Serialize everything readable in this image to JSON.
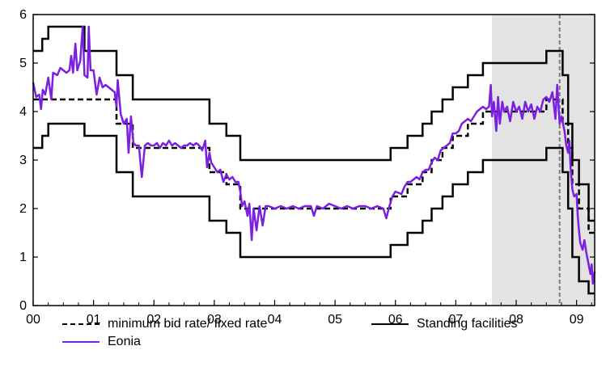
{
  "chart_data": {
    "type": "line",
    "title": "",
    "xlabel": "",
    "ylabel": "",
    "x_ticks": [
      "00",
      "01",
      "02",
      "03",
      "04",
      "05",
      "06",
      "07",
      "08",
      "09"
    ],
    "y_ticks": [
      "0",
      "1",
      "2",
      "3",
      "4",
      "5",
      "6"
    ],
    "xlim": [
      2000.0,
      2009.3
    ],
    "ylim": [
      0,
      6
    ],
    "shaded_region": {
      "from": 2007.6,
      "to": 2009.3,
      "color": "#e3e3e3"
    },
    "vertical_marker": {
      "x": 2008.72,
      "style": "dashed",
      "color": "#7a7a7a"
    },
    "legend_position": "bottom",
    "series": [
      {
        "name": "minimum bid rate/ fixed rate",
        "style": "dashed",
        "color": "#000000",
        "steps": [
          [
            2000.0,
            4.25
          ],
          [
            2001.38,
            3.75
          ],
          [
            2001.65,
            3.25
          ],
          [
            2002.92,
            2.75
          ],
          [
            2003.2,
            2.5
          ],
          [
            2003.43,
            2.0
          ],
          [
            2005.92,
            2.25
          ],
          [
            2006.2,
            2.5
          ],
          [
            2006.45,
            2.75
          ],
          [
            2006.6,
            3.0
          ],
          [
            2006.78,
            3.25
          ],
          [
            2006.95,
            3.5
          ],
          [
            2007.2,
            3.75
          ],
          [
            2007.45,
            4.0
          ],
          [
            2008.5,
            4.25
          ],
          [
            2008.77,
            3.75
          ],
          [
            2008.86,
            3.25
          ],
          [
            2008.93,
            2.5
          ],
          [
            2009.04,
            2.0
          ],
          [
            2009.2,
            1.5
          ],
          [
            2009.3,
            1.5
          ]
        ]
      },
      {
        "name": "Standing facilities",
        "style": "solid",
        "color": "#000000",
        "upper_steps": [
          [
            2000.0,
            5.25
          ],
          [
            2000.15,
            5.5
          ],
          [
            2000.25,
            5.75
          ],
          [
            2000.85,
            5.25
          ],
          [
            2001.38,
            4.75
          ],
          [
            2001.65,
            4.25
          ],
          [
            2002.92,
            3.75
          ],
          [
            2003.2,
            3.5
          ],
          [
            2003.43,
            3.0
          ],
          [
            2005.92,
            3.25
          ],
          [
            2006.2,
            3.5
          ],
          [
            2006.45,
            3.75
          ],
          [
            2006.6,
            4.0
          ],
          [
            2006.78,
            4.25
          ],
          [
            2006.95,
            4.5
          ],
          [
            2007.2,
            4.75
          ],
          [
            2007.45,
            5.0
          ],
          [
            2008.5,
            5.25
          ],
          [
            2008.77,
            4.75
          ],
          [
            2008.86,
            3.75
          ],
          [
            2008.93,
            3.0
          ],
          [
            2009.04,
            2.5
          ],
          [
            2009.2,
            1.75
          ],
          [
            2009.3,
            1.75
          ]
        ],
        "lower_steps": [
          [
            2000.0,
            3.25
          ],
          [
            2000.15,
            3.5
          ],
          [
            2000.25,
            3.75
          ],
          [
            2000.85,
            3.5
          ],
          [
            2001.38,
            2.75
          ],
          [
            2001.65,
            2.25
          ],
          [
            2002.92,
            1.75
          ],
          [
            2003.2,
            1.5
          ],
          [
            2003.43,
            1.0
          ],
          [
            2005.92,
            1.25
          ],
          [
            2006.2,
            1.5
          ],
          [
            2006.45,
            1.75
          ],
          [
            2006.6,
            2.0
          ],
          [
            2006.78,
            2.25
          ],
          [
            2006.95,
            2.5
          ],
          [
            2007.2,
            2.75
          ],
          [
            2007.45,
            3.0
          ],
          [
            2008.5,
            3.25
          ],
          [
            2008.77,
            2.75
          ],
          [
            2008.86,
            2.0
          ],
          [
            2008.93,
            1.0
          ],
          [
            2009.04,
            0.5
          ],
          [
            2009.2,
            0.25
          ],
          [
            2009.3,
            0.25
          ]
        ]
      },
      {
        "name": "Eonia",
        "style": "solid",
        "color": "#7b1fe0",
        "points": [
          [
            2000.0,
            4.6
          ],
          [
            2000.05,
            4.3
          ],
          [
            2000.1,
            4.35
          ],
          [
            2000.13,
            4.05
          ],
          [
            2000.16,
            4.45
          ],
          [
            2000.2,
            4.35
          ],
          [
            2000.25,
            4.7
          ],
          [
            2000.3,
            4.25
          ],
          [
            2000.33,
            4.8
          ],
          [
            2000.4,
            4.75
          ],
          [
            2000.45,
            4.9
          ],
          [
            2000.5,
            4.85
          ],
          [
            2000.55,
            4.8
          ],
          [
            2000.6,
            4.85
          ],
          [
            2000.63,
            5.15
          ],
          [
            2000.66,
            4.8
          ],
          [
            2000.7,
            5.4
          ],
          [
            2000.73,
            4.85
          ],
          [
            2000.78,
            5.05
          ],
          [
            2000.82,
            5.75
          ],
          [
            2000.85,
            4.75
          ],
          [
            2000.9,
            4.7
          ],
          [
            2000.92,
            5.75
          ],
          [
            2000.95,
            4.85
          ],
          [
            2001.0,
            4.85
          ],
          [
            2001.05,
            4.35
          ],
          [
            2001.1,
            4.7
          ],
          [
            2001.15,
            4.5
          ],
          [
            2001.2,
            4.55
          ],
          [
            2001.25,
            4.5
          ],
          [
            2001.3,
            4.45
          ],
          [
            2001.35,
            4.4
          ],
          [
            2001.38,
            4.1
          ],
          [
            2001.4,
            4.65
          ],
          [
            2001.45,
            3.95
          ],
          [
            2001.5,
            3.75
          ],
          [
            2001.55,
            3.85
          ],
          [
            2001.58,
            3.15
          ],
          [
            2001.62,
            3.9
          ],
          [
            2001.66,
            3.35
          ],
          [
            2001.7,
            3.3
          ],
          [
            2001.75,
            3.3
          ],
          [
            2001.8,
            2.65
          ],
          [
            2001.85,
            3.3
          ],
          [
            2001.9,
            3.35
          ],
          [
            2001.95,
            3.3
          ],
          [
            2002.0,
            3.3
          ],
          [
            2002.05,
            3.35
          ],
          [
            2002.1,
            3.25
          ],
          [
            2002.15,
            3.35
          ],
          [
            2002.2,
            3.3
          ],
          [
            2002.25,
            3.4
          ],
          [
            2002.3,
            3.3
          ],
          [
            2002.35,
            3.35
          ],
          [
            2002.4,
            3.3
          ],
          [
            2002.45,
            3.25
          ],
          [
            2002.5,
            3.3
          ],
          [
            2002.55,
            3.3
          ],
          [
            2002.6,
            3.35
          ],
          [
            2002.65,
            3.3
          ],
          [
            2002.7,
            3.35
          ],
          [
            2002.75,
            3.3
          ],
          [
            2002.8,
            3.2
          ],
          [
            2002.85,
            3.4
          ],
          [
            2002.88,
            2.85
          ],
          [
            2002.92,
            3.15
          ],
          [
            2002.95,
            2.95
          ],
          [
            2003.0,
            2.85
          ],
          [
            2003.05,
            2.75
          ],
          [
            2003.1,
            2.8
          ],
          [
            2003.15,
            2.55
          ],
          [
            2003.2,
            2.7
          ],
          [
            2003.25,
            2.6
          ],
          [
            2003.3,
            2.65
          ],
          [
            2003.35,
            2.55
          ],
          [
            2003.4,
            2.55
          ],
          [
            2003.43,
            2.35
          ],
          [
            2003.46,
            2.05
          ],
          [
            2003.5,
            2.15
          ],
          [
            2003.55,
            1.85
          ],
          [
            2003.58,
            2.1
          ],
          [
            2003.62,
            1.35
          ],
          [
            2003.65,
            2.0
          ],
          [
            2003.7,
            1.55
          ],
          [
            2003.75,
            2.05
          ],
          [
            2003.8,
            1.65
          ],
          [
            2003.85,
            2.05
          ],
          [
            2003.9,
            2.05
          ],
          [
            2004.0,
            2.0
          ],
          [
            2004.1,
            2.05
          ],
          [
            2004.2,
            2.0
          ],
          [
            2004.3,
            2.05
          ],
          [
            2004.4,
            2.0
          ],
          [
            2004.5,
            2.05
          ],
          [
            2004.6,
            2.05
          ],
          [
            2004.65,
            1.85
          ],
          [
            2004.7,
            2.05
          ],
          [
            2004.8,
            2.0
          ],
          [
            2004.9,
            2.1
          ],
          [
            2005.0,
            2.05
          ],
          [
            2005.1,
            2.0
          ],
          [
            2005.2,
            2.05
          ],
          [
            2005.3,
            2.0
          ],
          [
            2005.4,
            2.05
          ],
          [
            2005.5,
            2.05
          ],
          [
            2005.6,
            2.0
          ],
          [
            2005.7,
            2.05
          ],
          [
            2005.8,
            2.0
          ],
          [
            2005.85,
            1.8
          ],
          [
            2005.9,
            2.05
          ],
          [
            2005.95,
            2.25
          ],
          [
            2006.0,
            2.35
          ],
          [
            2006.1,
            2.3
          ],
          [
            2006.15,
            2.45
          ],
          [
            2006.2,
            2.55
          ],
          [
            2006.25,
            2.55
          ],
          [
            2006.3,
            2.6
          ],
          [
            2006.35,
            2.65
          ],
          [
            2006.4,
            2.6
          ],
          [
            2006.45,
            2.75
          ],
          [
            2006.5,
            2.8
          ],
          [
            2006.55,
            2.8
          ],
          [
            2006.6,
            2.95
          ],
          [
            2006.65,
            3.05
          ],
          [
            2006.7,
            3.0
          ],
          [
            2006.75,
            3.2
          ],
          [
            2006.8,
            3.25
          ],
          [
            2006.85,
            3.3
          ],
          [
            2006.9,
            3.35
          ],
          [
            2006.95,
            3.55
          ],
          [
            2007.0,
            3.55
          ],
          [
            2007.05,
            3.6
          ],
          [
            2007.1,
            3.75
          ],
          [
            2007.15,
            3.8
          ],
          [
            2007.2,
            3.85
          ],
          [
            2007.25,
            3.8
          ],
          [
            2007.3,
            3.9
          ],
          [
            2007.35,
            4.0
          ],
          [
            2007.4,
            4.05
          ],
          [
            2007.45,
            4.1
          ],
          [
            2007.5,
            4.05
          ],
          [
            2007.55,
            4.1
          ],
          [
            2007.58,
            4.55
          ],
          [
            2007.6,
            3.9
          ],
          [
            2007.63,
            4.2
          ],
          [
            2007.67,
            3.6
          ],
          [
            2007.7,
            4.3
          ],
          [
            2007.73,
            3.75
          ],
          [
            2007.77,
            4.2
          ],
          [
            2007.8,
            4.0
          ],
          [
            2007.85,
            4.1
          ],
          [
            2007.9,
            3.8
          ],
          [
            2007.95,
            4.2
          ],
          [
            2008.0,
            4.0
          ],
          [
            2008.05,
            4.1
          ],
          [
            2008.1,
            3.85
          ],
          [
            2008.15,
            4.2
          ],
          [
            2008.2,
            4.0
          ],
          [
            2008.25,
            4.15
          ],
          [
            2008.3,
            3.85
          ],
          [
            2008.35,
            4.1
          ],
          [
            2008.4,
            4.0
          ],
          [
            2008.45,
            4.25
          ],
          [
            2008.5,
            4.3
          ],
          [
            2008.55,
            4.2
          ],
          [
            2008.6,
            4.4
          ],
          [
            2008.65,
            3.85
          ],
          [
            2008.68,
            4.55
          ],
          [
            2008.72,
            3.75
          ],
          [
            2008.75,
            3.9
          ],
          [
            2008.8,
            3.6
          ],
          [
            2008.83,
            3.3
          ],
          [
            2008.86,
            3.15
          ],
          [
            2008.88,
            3.4
          ],
          [
            2008.9,
            2.85
          ],
          [
            2008.93,
            2.4
          ],
          [
            2008.96,
            2.25
          ],
          [
            2009.0,
            2.3
          ],
          [
            2009.02,
            1.85
          ],
          [
            2009.04,
            1.55
          ],
          [
            2009.06,
            1.3
          ],
          [
            2009.1,
            1.15
          ],
          [
            2009.13,
            1.35
          ],
          [
            2009.16,
            1.1
          ],
          [
            2009.2,
            0.85
          ],
          [
            2009.23,
            0.65
          ],
          [
            2009.25,
            0.85
          ],
          [
            2009.27,
            0.45
          ],
          [
            2009.3,
            0.7
          ]
        ]
      }
    ]
  }
}
